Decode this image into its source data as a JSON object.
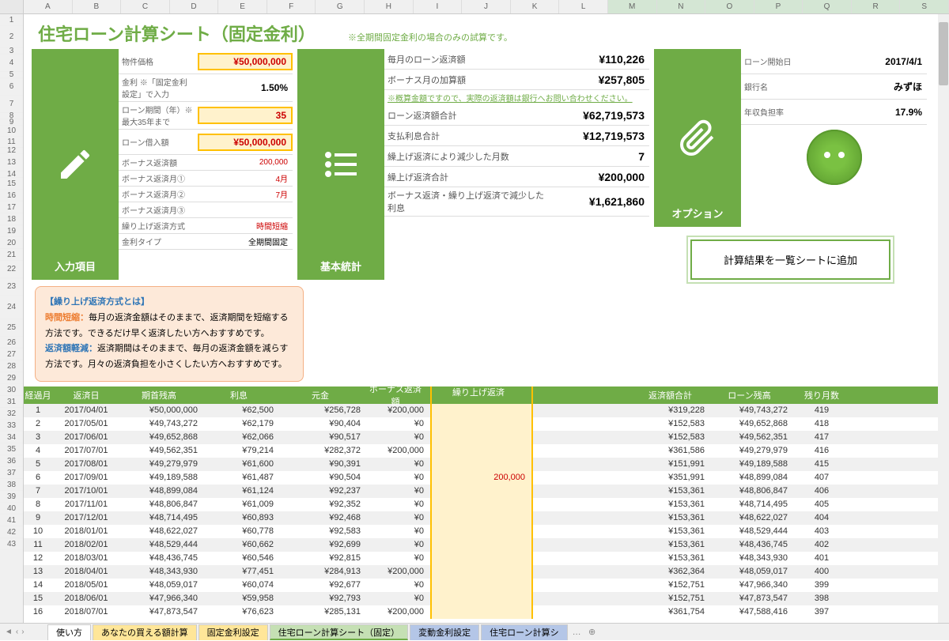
{
  "columns": [
    "A",
    "B",
    "C",
    "D",
    "E",
    "F",
    "G",
    "H",
    "I",
    "J",
    "K",
    "L",
    "M",
    "N",
    "O",
    "P",
    "Q",
    "R",
    "S"
  ],
  "sel_cols": [
    "M",
    "N",
    "O",
    "P",
    "Q",
    "R",
    "S"
  ],
  "title": "住宅ローン計算シート（固定金利）",
  "title_note": "※全期間固定金利の場合のみの試算です。",
  "input_card": {
    "label": "入力項目",
    "rows": [
      {
        "k": "物件価格",
        "v": "¥50,000,000",
        "cls": "red hl",
        "tall": true
      },
      {
        "k": "金利 ※「固定金利設定」で入力",
        "v": "1.50%",
        "tall": true
      },
      {
        "k": "ローン期間（年）※最大35年まで",
        "v": "35",
        "cls": "red hl",
        "tall": true
      },
      {
        "k": "ローン借入額",
        "v": "¥50,000,000",
        "cls": "red hl",
        "tall": true
      },
      {
        "k": "ボーナス返済額",
        "v": "200,000",
        "cls": "red sm"
      },
      {
        "k": "ボーナス返済月①",
        "v": "4月",
        "cls": "red sm"
      },
      {
        "k": "ボーナス返済月②",
        "v": "7月",
        "cls": "red sm"
      },
      {
        "k": "ボーナス返済月③",
        "v": "",
        "cls": "sm"
      },
      {
        "k": "繰り上げ返済方式",
        "v": "時間短縮",
        "cls": "red sm"
      },
      {
        "k": "金利タイプ",
        "v": "全期間固定",
        "cls": "sm"
      }
    ]
  },
  "stats_card": {
    "label": "基本統計",
    "rows": [
      {
        "k": "毎月のローン返済額",
        "v": "¥110,226"
      },
      {
        "k": "ボーナス月の加算額",
        "v": "¥257,805"
      },
      {
        "k": "ローン返済額合計",
        "v": "¥62,719,573"
      },
      {
        "k": "支払利息合計",
        "v": "¥12,719,573"
      },
      {
        "k": "繰上げ返済により減少した月数",
        "v": "7"
      },
      {
        "k": "繰上げ返済合計",
        "v": "¥200,000"
      },
      {
        "k": "ボーナス返済・繰り上げ返済で減少した利息",
        "v": "¥1,621,860"
      }
    ],
    "note": "※概算金額ですので、実際の返済額は銀行へお問い合わせください。"
  },
  "option_card": {
    "label": "オプション",
    "rows": [
      {
        "k": "ローン開始日",
        "v": "2017/4/1"
      },
      {
        "k": "銀行名",
        "v": "みずほ"
      },
      {
        "k": "年収負担率",
        "v": "17.9%"
      }
    ]
  },
  "btn_calc": "計算結果を一覧シートに追加",
  "tooltip": {
    "title": "【繰り上げ返済方式とは】",
    "t1": "時間短縮：",
    "d1": "毎月の返済金額はそのままで、返済期間を短縮する方法です。できるだけ早く返済したい方へおすすめです。",
    "t2": "返済額軽減：",
    "d2": "返済期間はそのままで、毎月の返済金額を減らす方法です。月々の返済負担を小さくしたい方へおすすめです。"
  },
  "amort_head": [
    "経過月",
    "返済日",
    "期首残高",
    "利息",
    "元金",
    "ボーナス返済額",
    "繰り上げ返済",
    "",
    "返済額合計",
    "ローン残高",
    "残り月数"
  ],
  "amort_rows": [
    {
      "i": 1,
      "d": "2017/04/01",
      "b0": "¥50,000,000",
      "int": "¥62,500",
      "p": "¥256,728",
      "bn": "¥200,000",
      "pp": "",
      "s": "¥319,228",
      "b1": "¥49,743,272",
      "r": 419
    },
    {
      "i": 2,
      "d": "2017/05/01",
      "b0": "¥49,743,272",
      "int": "¥62,179",
      "p": "¥90,404",
      "bn": "¥0",
      "pp": "",
      "s": "¥152,583",
      "b1": "¥49,652,868",
      "r": 418
    },
    {
      "i": 3,
      "d": "2017/06/01",
      "b0": "¥49,652,868",
      "int": "¥62,066",
      "p": "¥90,517",
      "bn": "¥0",
      "pp": "",
      "s": "¥152,583",
      "b1": "¥49,562,351",
      "r": 417
    },
    {
      "i": 4,
      "d": "2017/07/01",
      "b0": "¥49,562,351",
      "int": "¥79,214",
      "p": "¥282,372",
      "bn": "¥200,000",
      "pp": "",
      "s": "¥361,586",
      "b1": "¥49,279,979",
      "r": 416
    },
    {
      "i": 5,
      "d": "2017/08/01",
      "b0": "¥49,279,979",
      "int": "¥61,600",
      "p": "¥90,391",
      "bn": "¥0",
      "pp": "",
      "s": "¥151,991",
      "b1": "¥49,189,588",
      "r": 415
    },
    {
      "i": 6,
      "d": "2017/09/01",
      "b0": "¥49,189,588",
      "int": "¥61,487",
      "p": "¥90,504",
      "bn": "¥0",
      "pp": "200,000",
      "s": "¥351,991",
      "b1": "¥48,899,084",
      "r": 407
    },
    {
      "i": 7,
      "d": "2017/10/01",
      "b0": "¥48,899,084",
      "int": "¥61,124",
      "p": "¥92,237",
      "bn": "¥0",
      "pp": "",
      "s": "¥153,361",
      "b1": "¥48,806,847",
      "r": 406
    },
    {
      "i": 8,
      "d": "2017/11/01",
      "b0": "¥48,806,847",
      "int": "¥61,009",
      "p": "¥92,352",
      "bn": "¥0",
      "pp": "",
      "s": "¥153,361",
      "b1": "¥48,714,495",
      "r": 405
    },
    {
      "i": 9,
      "d": "2017/12/01",
      "b0": "¥48,714,495",
      "int": "¥60,893",
      "p": "¥92,468",
      "bn": "¥0",
      "pp": "",
      "s": "¥153,361",
      "b1": "¥48,622,027",
      "r": 404
    },
    {
      "i": 10,
      "d": "2018/01/01",
      "b0": "¥48,622,027",
      "int": "¥60,778",
      "p": "¥92,583",
      "bn": "¥0",
      "pp": "",
      "s": "¥153,361",
      "b1": "¥48,529,444",
      "r": 403
    },
    {
      "i": 11,
      "d": "2018/02/01",
      "b0": "¥48,529,444",
      "int": "¥60,662",
      "p": "¥92,699",
      "bn": "¥0",
      "pp": "",
      "s": "¥153,361",
      "b1": "¥48,436,745",
      "r": 402
    },
    {
      "i": 12,
      "d": "2018/03/01",
      "b0": "¥48,436,745",
      "int": "¥60,546",
      "p": "¥92,815",
      "bn": "¥0",
      "pp": "",
      "s": "¥153,361",
      "b1": "¥48,343,930",
      "r": 401
    },
    {
      "i": 13,
      "d": "2018/04/01",
      "b0": "¥48,343,930",
      "int": "¥77,451",
      "p": "¥284,913",
      "bn": "¥200,000",
      "pp": "",
      "s": "¥362,364",
      "b1": "¥48,059,017",
      "r": 400
    },
    {
      "i": 14,
      "d": "2018/05/01",
      "b0": "¥48,059,017",
      "int": "¥60,074",
      "p": "¥92,677",
      "bn": "¥0",
      "pp": "",
      "s": "¥152,751",
      "b1": "¥47,966,340",
      "r": 399
    },
    {
      "i": 15,
      "d": "2018/06/01",
      "b0": "¥47,966,340",
      "int": "¥59,958",
      "p": "¥92,793",
      "bn": "¥0",
      "pp": "",
      "s": "¥152,751",
      "b1": "¥47,873,547",
      "r": 398
    },
    {
      "i": 16,
      "d": "2018/07/01",
      "b0": "¥47,873,547",
      "int": "¥76,623",
      "p": "¥285,131",
      "bn": "¥200,000",
      "pp": "",
      "s": "¥361,754",
      "b1": "¥47,588,416",
      "r": 397
    }
  ],
  "tabs": [
    {
      "t": "使い方",
      "c": ""
    },
    {
      "t": "あなたの買える額計算",
      "c": "y"
    },
    {
      "t": "固定金利設定",
      "c": "y"
    },
    {
      "t": "住宅ローン計算シート（固定）",
      "c": "g active"
    },
    {
      "t": "変動金利設定",
      "c": "b"
    },
    {
      "t": "住宅ローン計算シ",
      "c": "b"
    }
  ]
}
